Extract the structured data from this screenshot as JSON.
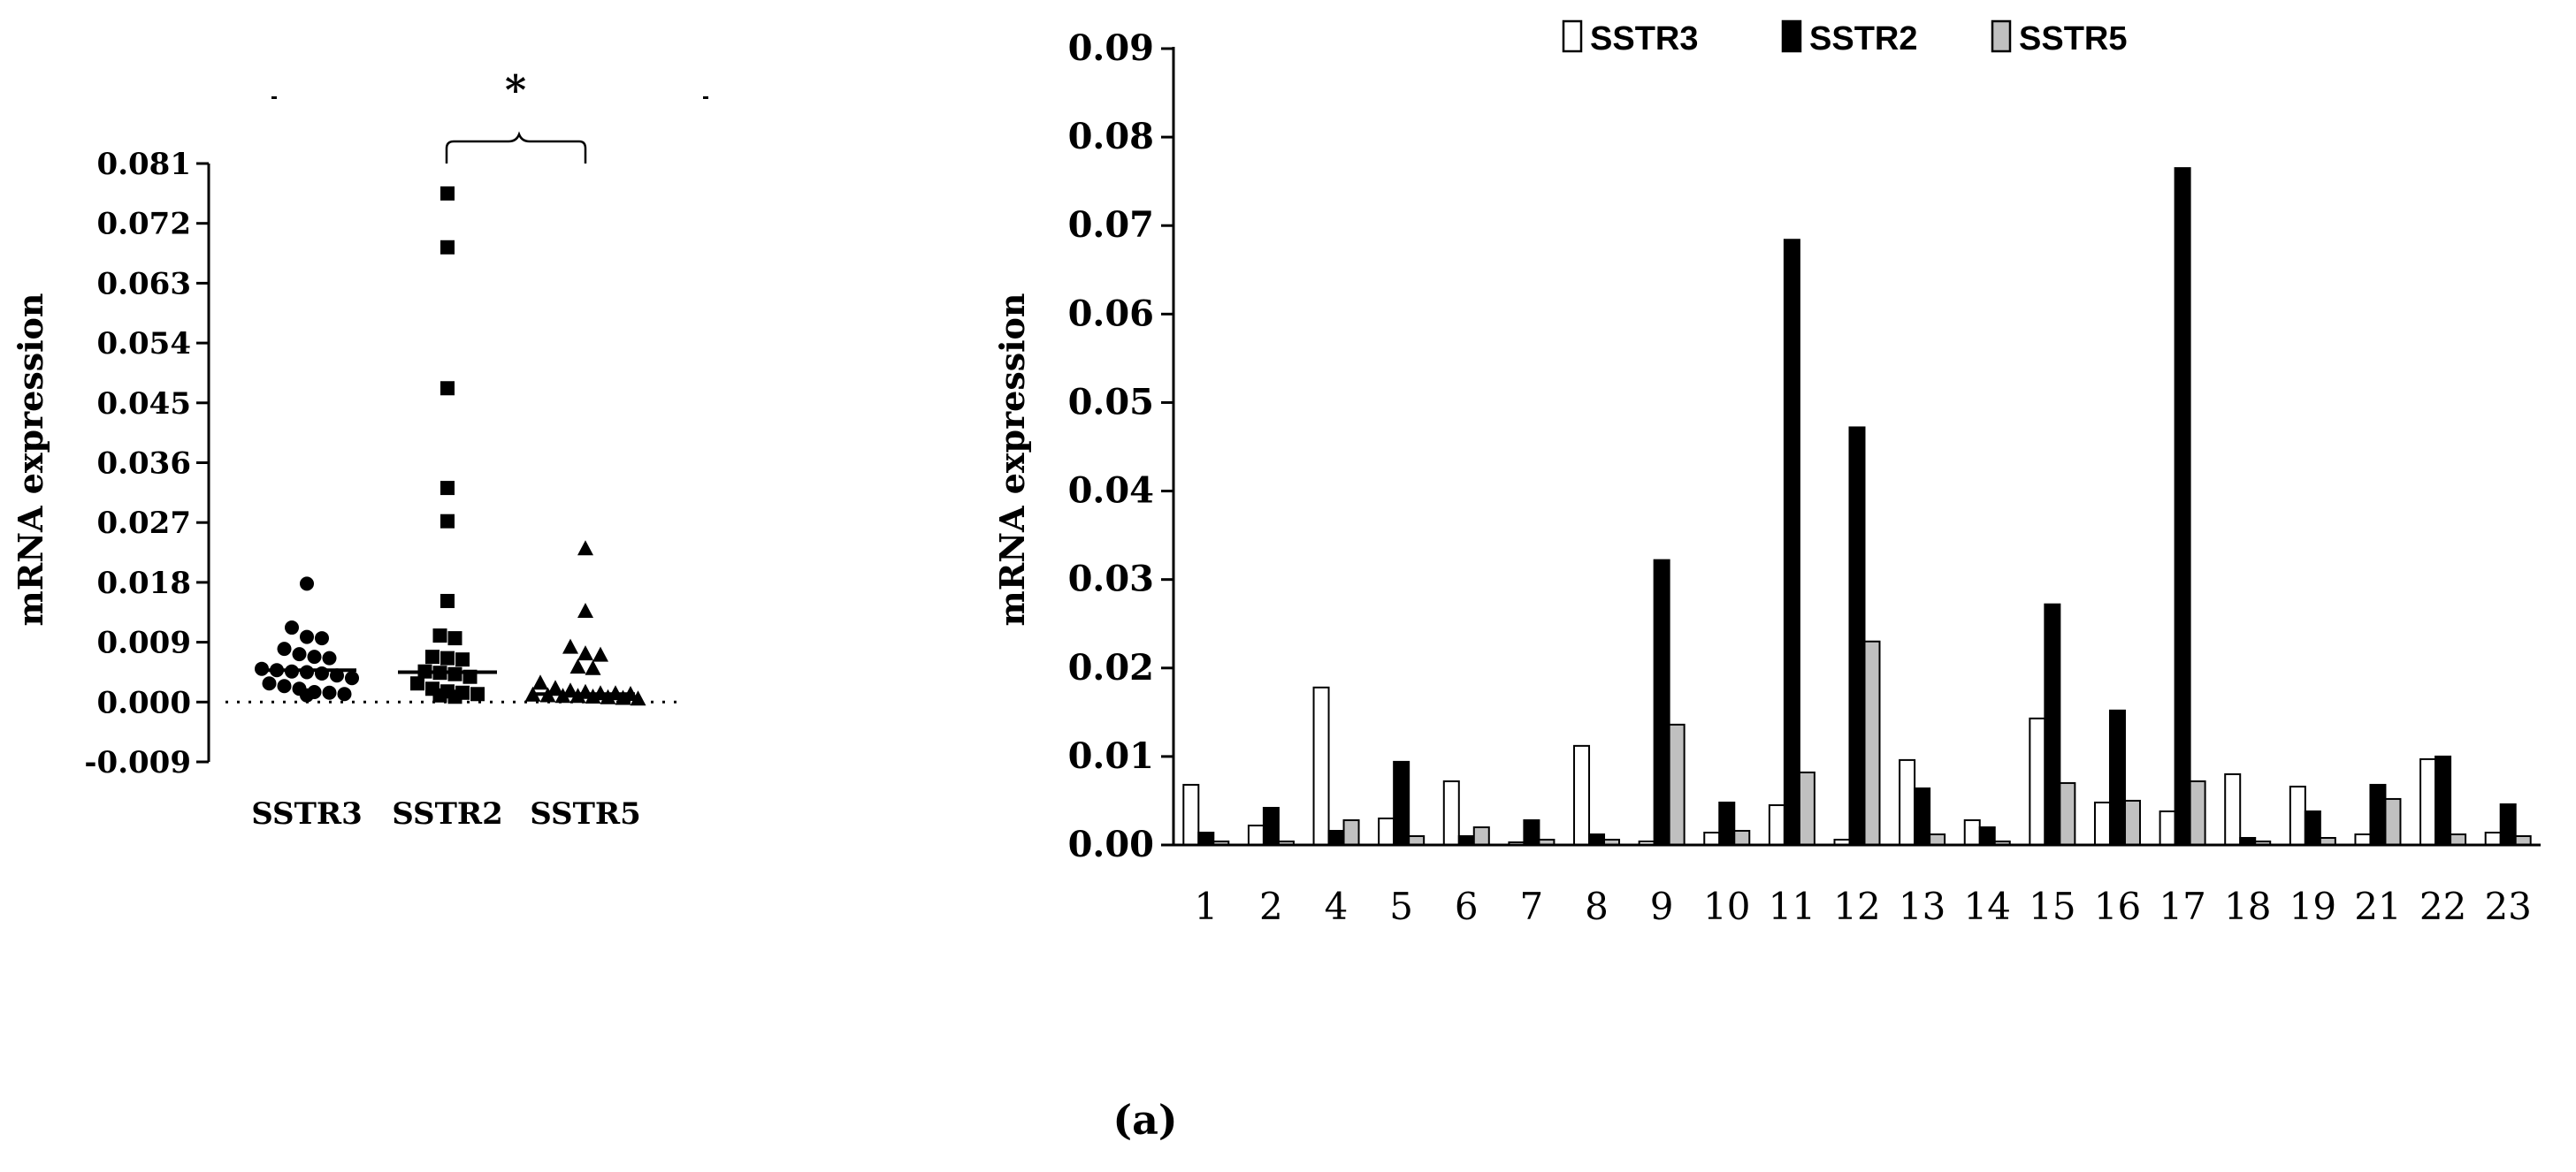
{
  "panel_label": "(a)",
  "chart_data": [
    {
      "type": "scatter",
      "title": "",
      "ylabel": "mRNA expression",
      "xlabel": "",
      "ylim": [
        -0.009,
        0.081
      ],
      "yticks": [
        -0.009,
        0.0,
        0.009,
        0.018,
        0.027,
        0.036,
        0.045,
        0.054,
        0.063,
        0.072,
        0.081
      ],
      "ytick_labels": [
        "-0.009",
        "0.000",
        "0.009",
        "0.018",
        "0.027",
        "0.036",
        "0.045",
        "0.054",
        "0.063",
        "0.072",
        "0.081"
      ],
      "categories": [
        "SSTR3",
        "SSTR2",
        "SSTR5"
      ],
      "zero_line": "dotted",
      "significance": {
        "label": "*",
        "between": [
          "SSTR2",
          "SSTR5"
        ]
      },
      "series": [
        {
          "name": "SSTR3",
          "marker": "circle",
          "median": 0.0048,
          "values": [
            0.0178,
            0.0112,
            0.0098,
            0.0096,
            0.008,
            0.0072,
            0.0068,
            0.0066,
            0.005,
            0.0048,
            0.0046,
            0.0045,
            0.0043,
            0.004,
            0.0036,
            0.0028,
            0.0024,
            0.002,
            0.0015,
            0.0014,
            0.0012,
            0.001
          ]
        },
        {
          "name": "SSTR2",
          "marker": "square",
          "median": 0.0045,
          "values": [
            0.0765,
            0.0684,
            0.0472,
            0.0322,
            0.0272,
            0.0152,
            0.01,
            0.0096,
            0.0068,
            0.0066,
            0.0064,
            0.0046,
            0.0044,
            0.0042,
            0.0038,
            0.0028,
            0.002,
            0.0016,
            0.0014,
            0.0012,
            0.001,
            0.0008
          ]
        },
        {
          "name": "SSTR5",
          "marker": "triangle",
          "median": 0.0012,
          "values": [
            0.023,
            0.0136,
            0.0082,
            0.0072,
            0.007,
            0.0052,
            0.005,
            0.0028,
            0.002,
            0.0016,
            0.0014,
            0.0012,
            0.0012,
            0.0011,
            0.001,
            0.0009,
            0.0008,
            0.0008,
            0.0007,
            0.0006,
            0.0005,
            0.0004
          ]
        }
      ]
    },
    {
      "type": "bar",
      "title": "",
      "ylabel": "mRNA expression",
      "xlabel": "",
      "ylim": [
        0,
        0.09
      ],
      "yticks": [
        0.0,
        0.01,
        0.02,
        0.03,
        0.04,
        0.05,
        0.06,
        0.07,
        0.08,
        0.09
      ],
      "ytick_labels": [
        "0.00",
        "0.01",
        "0.02",
        "0.03",
        "0.04",
        "0.05",
        "0.06",
        "0.07",
        "0.08",
        "0.09"
      ],
      "legend_position": "top",
      "categories": [
        "1",
        "2",
        "4",
        "5",
        "6",
        "7",
        "8",
        "9",
        "10",
        "11",
        "12",
        "13",
        "14",
        "15",
        "16",
        "17",
        "18",
        "19",
        "21",
        "22",
        "23"
      ],
      "series": [
        {
          "name": "SSTR3",
          "color": "#ffffff",
          "values": [
            0.0068,
            0.0022,
            0.0178,
            0.003,
            0.0072,
            0.0003,
            0.0112,
            0.0004,
            0.0014,
            0.0045,
            0.0006,
            0.0096,
            0.0028,
            0.0143,
            0.0048,
            0.0038,
            0.008,
            0.0066,
            0.0012,
            0.0097,
            0.0014
          ]
        },
        {
          "name": "SSTR2",
          "color": "#000000",
          "values": [
            0.0014,
            0.0042,
            0.0016,
            0.0094,
            0.001,
            0.0028,
            0.0012,
            0.0322,
            0.0048,
            0.0684,
            0.0472,
            0.0064,
            0.002,
            0.0272,
            0.0152,
            0.0765,
            0.0008,
            0.0038,
            0.0068,
            0.01,
            0.0046
          ]
        },
        {
          "name": "SSTR5",
          "color": "#c0c0c0",
          "values": [
            0.0004,
            0.0004,
            0.0028,
            0.001,
            0.002,
            0.0006,
            0.0006,
            0.0136,
            0.0016,
            0.0082,
            0.023,
            0.0012,
            0.0004,
            0.007,
            0.005,
            0.0072,
            0.0004,
            0.0008,
            0.0052,
            0.0012,
            0.001
          ]
        }
      ]
    }
  ]
}
